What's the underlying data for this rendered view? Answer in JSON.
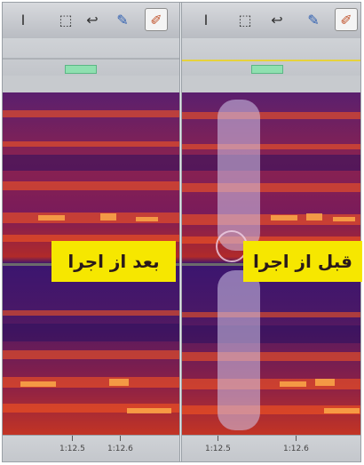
{
  "colors": {
    "label_background": "#f6e700",
    "spectrogram_low": "#3b1570",
    "spectrogram_high": "#ff4a1a",
    "selection_overlay": "#d2c8eb",
    "marker": "#8fe0b0"
  },
  "toolbar": {
    "tools": [
      {
        "name": "text-cursor-tool-icon",
        "glyph": "I"
      },
      {
        "name": "marquee-select-tool-icon",
        "glyph": "⬚"
      },
      {
        "name": "lasso-tool-icon",
        "glyph": "↩"
      },
      {
        "name": "brush-tool-icon",
        "glyph": "✎"
      },
      {
        "name": "eraser-tool-icon",
        "glyph": "✐"
      }
    ]
  },
  "panels": {
    "after": {
      "label": "بعد از اجرا",
      "ticks": [
        "1:12.5",
        "1:12.6"
      ]
    },
    "before": {
      "label": "قبل از اجرا",
      "ticks": [
        "1:12.5",
        "1:12.6"
      ]
    }
  }
}
